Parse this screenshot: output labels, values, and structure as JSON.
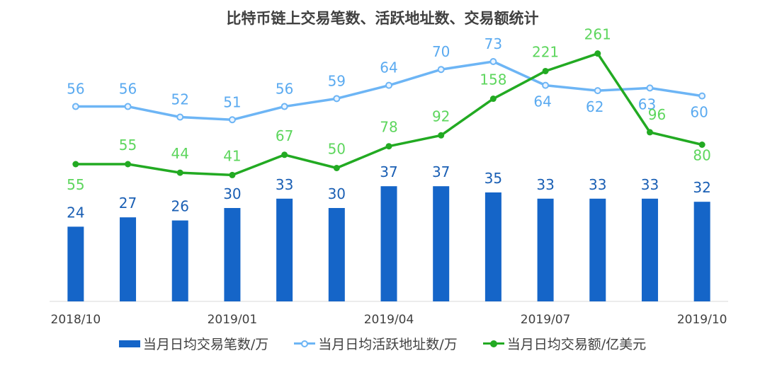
{
  "chart_data": {
    "type": "bar+line",
    "title": "比特币链上交易笔数、活跃地址数、交易额统计",
    "categories": [
      "2018/10",
      "2018/11",
      "2018/12",
      "2019/01",
      "2019/02",
      "2019/03",
      "2019/04",
      "2019/05",
      "2019/06",
      "2019/07",
      "2019/08",
      "2019/09",
      "2019/10"
    ],
    "tick_labels": [
      "2018/10",
      "",
      "",
      "2019/01",
      "",
      "",
      "2019/04",
      "",
      "",
      "2019/07",
      "",
      "",
      "2019/10"
    ],
    "series": [
      {
        "name": "当月日均交易笔数/万",
        "kind": "bar",
        "color": "#1565C8",
        "values": [
          24,
          27,
          26,
          30,
          33,
          30,
          37,
          37,
          35,
          33,
          33,
          33,
          32
        ]
      },
      {
        "name": "当月日均活跃地址数/万",
        "kind": "line",
        "color": "#6DB5F5",
        "label_color": "#5AAAF0",
        "values": [
          56,
          56,
          52,
          51,
          56,
          59,
          64,
          70,
          73,
          64,
          62,
          63,
          60
        ]
      },
      {
        "name": "当月日均交易额/亿美元",
        "kind": "line",
        "color": "#22AA22",
        "label_color": "#5DD65D",
        "values": [
          55,
          55,
          44,
          41,
          67,
          50,
          78,
          92,
          158,
          221,
          261,
          96,
          80
        ]
      }
    ],
    "legend_position": "bottom"
  }
}
